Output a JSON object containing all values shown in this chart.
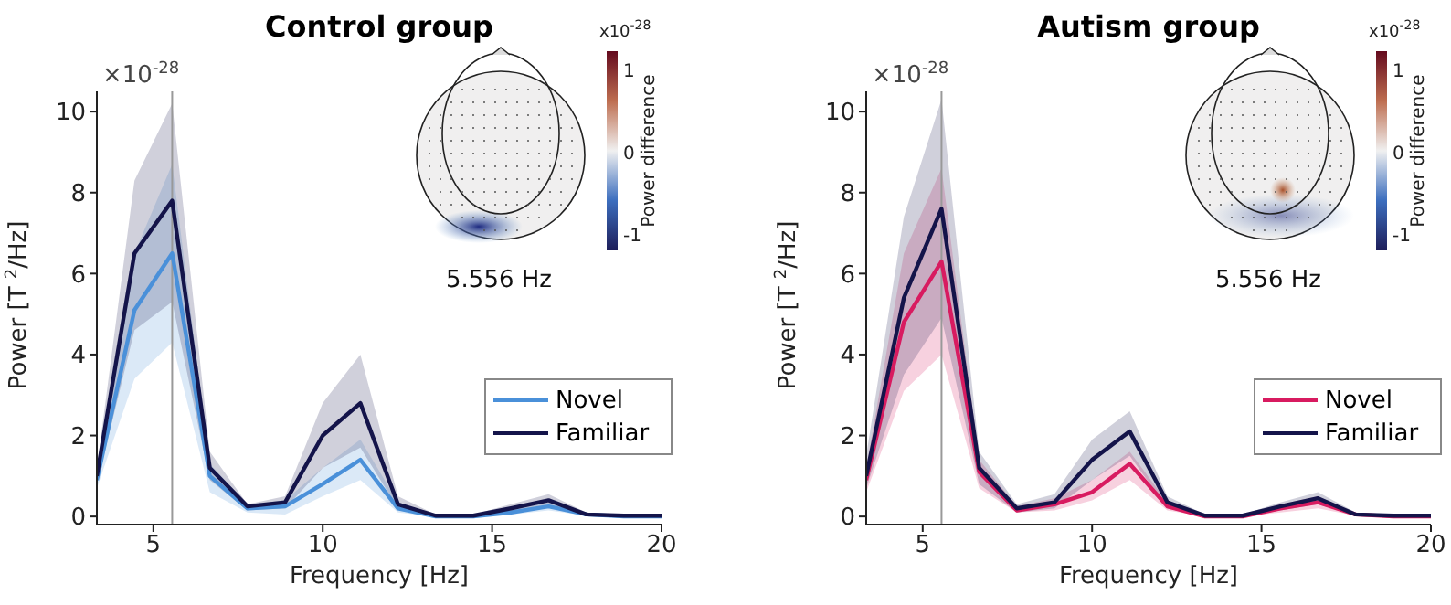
{
  "chart_data": [
    {
      "type": "line",
      "title": "Control group",
      "xlabel": "Frequency [Hz]",
      "ylabel": "Power [T $^{2}$/Hz]",
      "x": [
        3.333,
        4.444,
        5.556,
        6.667,
        7.778,
        8.889,
        10,
        11.111,
        12.222,
        13.333,
        14.444,
        15.556,
        16.667,
        17.778,
        18.889,
        20
      ],
      "series": [
        {
          "name": "Novel",
          "color": "#4a90d9",
          "values": [
            0.9,
            5.1,
            6.5,
            1.0,
            0.2,
            0.25,
            0.8,
            1.4,
            0.2,
            0.0,
            0.0,
            0.1,
            0.25,
            0.05,
            0.0,
            0.0
          ],
          "lower": [
            0.7,
            3.4,
            4.3,
            0.6,
            0.1,
            0.05,
            0.5,
            0.9,
            0.1,
            0,
            0,
            0.05,
            0.15,
            0.02,
            0,
            0
          ],
          "upper": [
            1.0,
            6.5,
            8.7,
            1.3,
            0.3,
            0.4,
            1.2,
            1.9,
            0.35,
            0.05,
            0.05,
            0.2,
            0.35,
            0.08,
            0.02,
            0.02
          ]
        },
        {
          "name": "Familiar",
          "color": "#14144a",
          "values": [
            1.0,
            6.5,
            7.8,
            1.2,
            0.25,
            0.35,
            2.0,
            2.8,
            0.3,
            0.02,
            0.02,
            0.2,
            0.4,
            0.05,
            0.02,
            0.02
          ],
          "lower": [
            0.8,
            4.6,
            5.3,
            0.9,
            0.15,
            0.2,
            1.2,
            1.7,
            0.2,
            0,
            0,
            0.1,
            0.25,
            0.02,
            0,
            0
          ],
          "upper": [
            1.2,
            8.3,
            10.2,
            1.6,
            0.3,
            0.5,
            2.8,
            4.0,
            0.5,
            0.05,
            0.05,
            0.3,
            0.55,
            0.1,
            0.03,
            0.03
          ]
        }
      ],
      "xlim": [
        3.333,
        20
      ],
      "xticks": [
        5,
        10,
        15,
        20
      ],
      "ylim": [
        -0.2,
        10.5
      ],
      "yticks": [
        0,
        2,
        4,
        6,
        8,
        10
      ],
      "ref_lines": [
        {
          "axis": "x",
          "value": 5.556,
          "color": "#999999"
        }
      ],
      "legend": "bottom right",
      "grid": false,
      "marker": "none",
      "line_style": "solid",
      "clabel": "Power difference",
      "annotations": [
        "×10$^{-28}$",
        "5.556 Hz",
        "x10$^{-28}$",
        "1",
        "0",
        "-1"
      ]
    },
    {
      "type": "line",
      "title": "Autism group",
      "xlabel": "Frequency [Hz]",
      "ylabel": "Power [T $^{2}$/Hz]",
      "x": [
        3.333,
        4.444,
        5.556,
        6.667,
        7.778,
        8.889,
        10,
        11.111,
        12.222,
        13.333,
        14.444,
        15.556,
        16.667,
        17.778,
        18.889,
        20
      ],
      "series": [
        {
          "name": "Novel",
          "color": "#d81b60",
          "values": [
            0.9,
            4.8,
            6.3,
            1.1,
            0.15,
            0.3,
            0.6,
            1.3,
            0.25,
            0.0,
            0.0,
            0.2,
            0.35,
            0.05,
            0,
            0
          ],
          "lower": [
            0.6,
            3.1,
            4.0,
            0.7,
            0.1,
            0.15,
            0.4,
            0.9,
            0.15,
            0,
            0,
            0.1,
            0.2,
            0.02,
            0,
            0
          ],
          "upper": [
            1.2,
            6.5,
            8.6,
            1.4,
            0.25,
            0.45,
            0.9,
            1.6,
            0.35,
            0.03,
            0.03,
            0.3,
            0.5,
            0.08,
            0.02,
            0.02
          ]
        },
        {
          "name": "Familiar",
          "color": "#14144a",
          "values": [
            1.0,
            5.4,
            7.6,
            1.2,
            0.2,
            0.35,
            1.4,
            2.1,
            0.35,
            0.02,
            0.02,
            0.25,
            0.45,
            0.05,
            0.02,
            0.02
          ],
          "lower": [
            0.7,
            3.5,
            4.9,
            0.8,
            0.1,
            0.2,
            0.9,
            1.5,
            0.2,
            0,
            0,
            0.15,
            0.3,
            0.02,
            0,
            0
          ],
          "upper": [
            1.5,
            7.4,
            10.3,
            1.6,
            0.3,
            0.55,
            1.9,
            2.6,
            0.5,
            0.05,
            0.05,
            0.35,
            0.6,
            0.1,
            0.03,
            0.03
          ]
        }
      ],
      "xlim": [
        3.333,
        20
      ],
      "xticks": [
        5,
        10,
        15,
        20
      ],
      "ylim": [
        -0.2,
        10.5
      ],
      "yticks": [
        0,
        2,
        4,
        6,
        8,
        10
      ],
      "ref_lines": [
        {
          "axis": "x",
          "value": 5.556,
          "color": "#999999"
        }
      ],
      "legend": "bottom right",
      "grid": false,
      "marker": "none",
      "line_style": "solid",
      "clabel": "Power difference",
      "annotations": [
        "×10$^{-28}$",
        "5.556 Hz",
        "x10$^{-28}$",
        "1",
        "0",
        "-1"
      ]
    }
  ]
}
